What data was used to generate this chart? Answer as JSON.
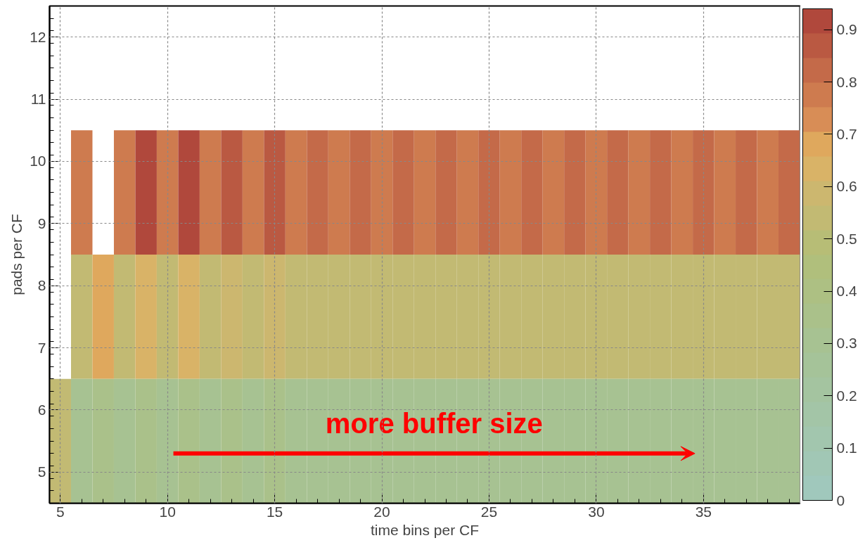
{
  "chart_data": {
    "type": "heatmap",
    "xlabel": "time bins per CF",
    "ylabel": "pads per CF",
    "x": [
      5,
      6,
      7,
      8,
      9,
      10,
      11,
      12,
      13,
      14,
      15,
      16,
      17,
      18,
      19,
      20,
      21,
      22,
      23,
      24,
      25,
      26,
      27,
      28,
      29,
      30,
      31,
      32,
      33,
      34,
      35,
      36,
      37,
      38,
      39
    ],
    "y": [
      9.5,
      7.5,
      5.5
    ],
    "cells": [
      [
        null,
        0.78,
        null,
        0.78,
        0.92,
        0.78,
        0.92,
        0.78,
        0.87,
        0.78,
        0.87,
        0.78,
        0.82,
        0.78,
        0.82,
        0.78,
        0.82,
        0.78,
        0.82,
        0.78,
        0.82,
        0.78,
        0.82,
        0.78,
        0.82,
        0.78,
        0.82,
        0.78,
        0.82,
        0.78,
        0.82,
        0.78,
        0.82,
        0.78,
        0.82
      ],
      [
        null,
        0.55,
        0.7,
        0.55,
        0.65,
        0.55,
        0.62,
        0.55,
        0.6,
        0.55,
        0.6,
        0.55,
        0.55,
        0.55,
        0.55,
        0.55,
        0.55,
        0.55,
        0.55,
        0.55,
        0.55,
        0.55,
        0.55,
        0.55,
        0.55,
        0.55,
        0.55,
        0.55,
        0.55,
        0.55,
        0.55,
        0.55,
        0.55,
        0.55,
        0.55
      ],
      [
        0.55,
        0.3,
        0.35,
        0.3,
        0.35,
        0.3,
        0.33,
        0.3,
        0.33,
        0.3,
        0.33,
        0.3,
        0.3,
        0.3,
        0.3,
        0.3,
        0.3,
        0.3,
        0.3,
        0.3,
        0.3,
        0.3,
        0.3,
        0.3,
        0.3,
        0.3,
        0.3,
        0.3,
        0.3,
        0.3,
        0.3,
        0.3,
        0.3,
        0.3,
        0.3
      ]
    ],
    "xlim": [
      4.5,
      39.5
    ],
    "xticks": [
      5,
      10,
      15,
      20,
      25,
      30,
      35
    ],
    "ylim": [
      4.5,
      12.5
    ],
    "yticks": [
      5,
      6,
      7,
      8,
      9,
      10,
      11,
      12
    ],
    "clim": [
      0,
      0.94
    ],
    "cticks": [
      0,
      0.1,
      0.2,
      0.3,
      0.4,
      0.5,
      0.6,
      0.7,
      0.8,
      0.9
    ],
    "grid": true,
    "annotations": [
      "more buffer size"
    ]
  }
}
